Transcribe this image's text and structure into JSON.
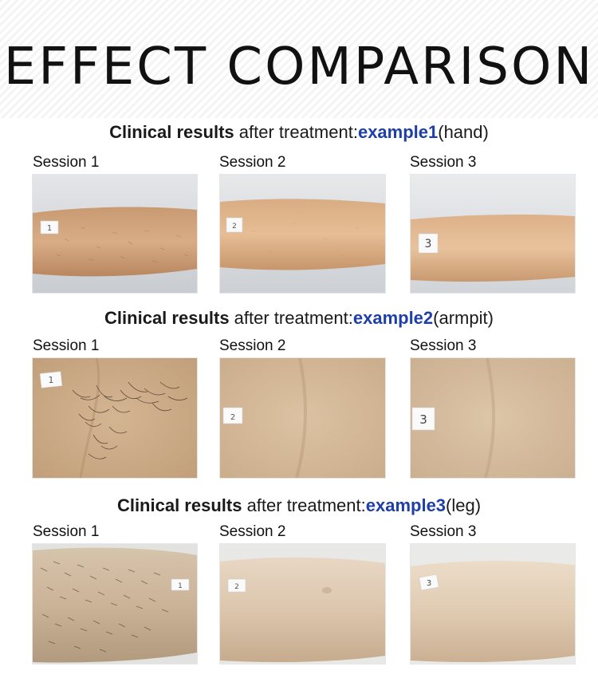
{
  "title": "EFFECT COMPARISON",
  "sections": [
    {
      "prefix": "Clinical results",
      "middle": " after treatment:",
      "example": "example1",
      "area": "(hand)",
      "sessions": [
        "Session 1",
        "Session 2",
        "Session 3"
      ],
      "tags": [
        "1",
        "2",
        "3"
      ]
    },
    {
      "prefix": "Clinical results",
      "middle": " after treatment:",
      "example": "example2",
      "area": "(armpit)",
      "sessions": [
        "Session 1",
        "Session 2",
        "Session 3"
      ],
      "tags": [
        "1",
        "2",
        "3"
      ]
    },
    {
      "prefix": "Clinical results",
      "middle": " after treatment:",
      "example": "example3",
      "area": "(leg)",
      "sessions": [
        "Session 1",
        "Session 2",
        "Session 3"
      ],
      "tags": [
        "1",
        "2",
        "3"
      ]
    }
  ],
  "colors": {
    "example_blue": "#1f3fa8",
    "skin_light": "#e7c8a6",
    "skin_mid": "#d9b28c",
    "backdrop": "#dfe2e6"
  }
}
